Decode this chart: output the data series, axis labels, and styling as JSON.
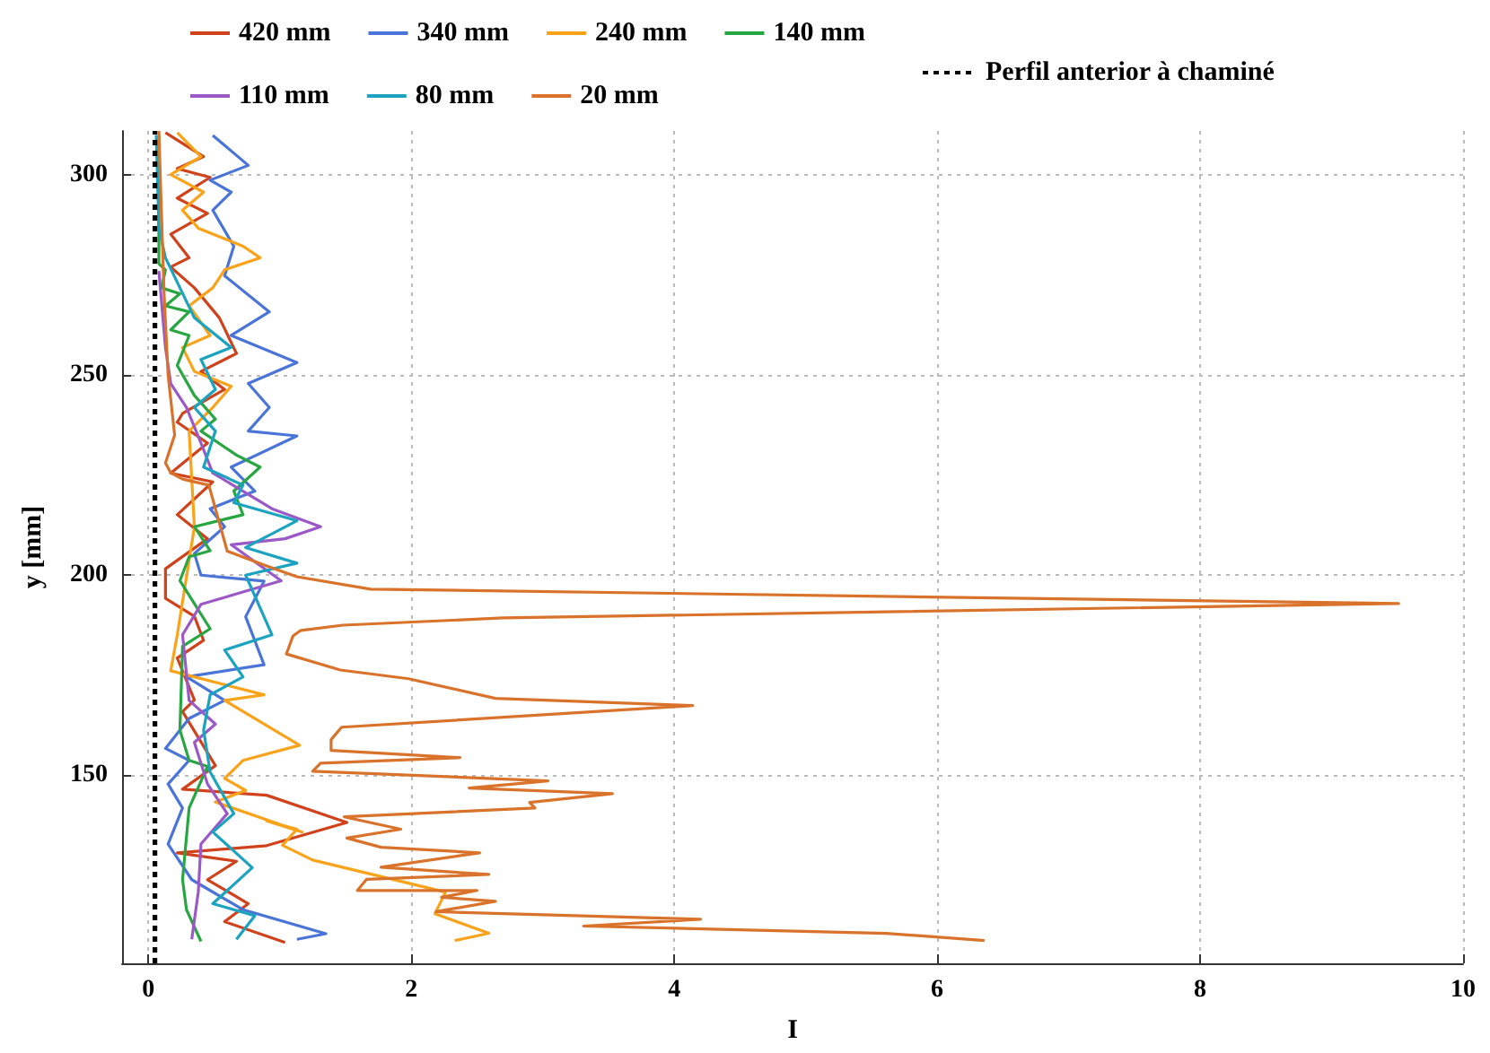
{
  "chart_data": {
    "type": "line",
    "xlabel": "I",
    "ylabel": "y [mm]",
    "xlim": [
      -0.2,
      10
    ],
    "xticks": [
      0,
      2,
      4,
      6,
      8,
      10
    ],
    "ylim": [
      103,
      311
    ],
    "yticks": [
      150,
      200,
      250,
      300
    ],
    "grid": true,
    "legend": "top",
    "marker": "none",
    "line_style": "solid",
    "series": [
      {
        "name": "420 mm",
        "color": "#d0421c",
        "x": [
          0.13,
          0.42,
          0.22,
          0.47,
          0.22,
          0.45,
          0.17,
          0.31,
          0.17,
          0.35,
          0.54,
          0.67,
          0.4,
          0.58,
          0.26,
          0.22,
          0.45,
          0.17,
          0.49,
          0.22,
          0.45,
          0.13,
          0.13,
          0.35,
          0.42,
          0.22,
          0.35,
          0.26,
          0.51,
          0.26,
          0.9,
          1.51,
          0.9,
          0.22,
          0.67,
          0.45,
          0.76,
          0.58,
          1.04
        ],
        "values": [
          310.6,
          304.6,
          301.6,
          299.4,
          294.2,
          290.4,
          285.2,
          279.3,
          277,
          271.8,
          264.3,
          255.4,
          250.9,
          246.4,
          240.4,
          238.2,
          233,
          225.5,
          223.3,
          215.1,
          209.1,
          201.6,
          194.2,
          189.7,
          183.7,
          179.3,
          168.8,
          165.9,
          152.4,
          146.5,
          145,
          138.2,
          132.4,
          130.6,
          128.5,
          123.9,
          117.9,
          113.4,
          108.2
        ]
      },
      {
        "name": "340 mm",
        "color": "#4a74d8",
        "x": [
          0.49,
          0.76,
          0.47,
          0.63,
          0.49,
          0.65,
          0.58,
          0.92,
          0.63,
          1.13,
          0.76,
          0.92,
          0.76,
          1.13,
          0.63,
          0.81,
          0.47,
          0.58,
          0.35,
          0.4,
          0.88,
          0.74,
          0.88,
          0.29,
          0.58,
          0.31,
          0.13,
          0.31,
          0.15,
          0.26,
          0.15,
          0.33,
          0.72,
          1.35,
          1.13
        ],
        "values": [
          309.9,
          302.4,
          298.7,
          295.7,
          291.2,
          282.2,
          274.8,
          265.8,
          259.9,
          253.1,
          247.9,
          241.9,
          236,
          234.8,
          227,
          221,
          216.6,
          212.1,
          205.4,
          200,
          198.5,
          189.6,
          177.6,
          174.6,
          168.7,
          164.2,
          156.7,
          153.7,
          147.8,
          141.8,
          132.8,
          123.9,
          116.4,
          110.4,
          109
        ]
      },
      {
        "name": "240 mm",
        "color": "#f9a31a",
        "x": [
          0.22,
          0.4,
          0.17,
          0.42,
          0.26,
          0.38,
          0.72,
          0.85,
          0.58,
          0.49,
          0.31,
          0.47,
          0.26,
          0.35,
          0.63,
          0.49,
          0.31,
          0.35,
          0.22,
          0.17,
          0.88,
          0.58,
          1.15,
          0.72,
          0.58,
          0.74,
          0.51,
          1.17,
          0.9,
          1.13,
          1.02,
          1.25,
          2.26,
          2.18,
          2.59,
          2.33
        ],
        "values": [
          310.6,
          304.6,
          300.1,
          295.7,
          291.2,
          286.7,
          282.2,
          279.3,
          276.3,
          271.8,
          267.3,
          259.9,
          256.9,
          250.9,
          247.2,
          241.9,
          236,
          212,
          185.1,
          176.1,
          170.1,
          168.7,
          157.5,
          153.7,
          149.2,
          146.2,
          143.3,
          135.8,
          138.6,
          136.5,
          132.5,
          128.8,
          120.8,
          115.4,
          110.5,
          108.7
        ]
      },
      {
        "name": "140 mm",
        "color": "#28a642",
        "x": [
          0.08,
          0.08,
          0.13,
          0.1,
          0.24,
          0.13,
          0.31,
          0.17,
          0.31,
          0.22,
          0.35,
          0.51,
          0.4,
          0.67,
          0.85,
          0.65,
          0.72,
          0.35,
          0.47,
          0.31,
          0.24,
          0.47,
          0.26,
          0.24,
          0.31,
          0.45,
          0.31,
          0.26,
          0.29,
          0.4
        ],
        "values": [
          310,
          277.8,
          276.3,
          271.8,
          270.3,
          267.3,
          265.8,
          261.3,
          259.9,
          252.4,
          244.9,
          239,
          236,
          230,
          227,
          221,
          215.1,
          212.1,
          206.1,
          204.6,
          198.6,
          186.6,
          182.2,
          161.3,
          153.7,
          152.2,
          141.8,
          123.9,
          116.4,
          108.5
        ]
      },
      {
        "name": "110 mm",
        "color": "#9b59c7",
        "x": [
          0.08,
          0.13,
          0.17,
          0.29,
          0.4,
          0.49,
          0.72,
          0.94,
          1.31,
          1.04,
          0.63,
          1.01,
          0.4,
          0.26,
          0.31,
          0.51,
          0.35,
          0.45,
          0.6,
          0.4,
          0.38,
          0.33
        ],
        "values": [
          276,
          256.9,
          247.9,
          241.9,
          233,
          225.5,
          221,
          216.6,
          212.1,
          209.1,
          207.6,
          198.6,
          192.7,
          185.1,
          168.7,
          162.8,
          158.2,
          147.8,
          140.4,
          132.8,
          120.9,
          109
        ]
      },
      {
        "name": "80 mm",
        "color": "#1ba3bf",
        "x": [
          0.06,
          0.08,
          0.13,
          0.35,
          0.63,
          0.4,
          0.51,
          0.35,
          0.51,
          0.42,
          0.72,
          0.65,
          1.13,
          0.74,
          1.13,
          0.74,
          0.94,
          0.58,
          0.72,
          0.47,
          0.42,
          0.47,
          0.65,
          0.49,
          0.79,
          0.49,
          0.81,
          0.67
        ],
        "values": [
          310,
          286.7,
          279.3,
          264.3,
          256.9,
          253.9,
          246.4,
          241.9,
          236,
          227,
          222.5,
          218.1,
          213.6,
          206.9,
          203,
          200,
          185.1,
          181.3,
          174.6,
          170.1,
          161.3,
          150.8,
          140.4,
          135.8,
          126.9,
          117.9,
          114.9,
          109
        ]
      },
      {
        "name": "20 mm",
        "color": "#d9732c",
        "x": [
          0.08,
          0.1,
          0.12,
          0.15,
          0.2,
          0.13,
          0.17,
          0.26,
          0.46,
          0.6,
          0.9,
          1.13,
          1.69,
          9.51,
          2.7,
          1.48,
          1.16,
          1.1,
          1.05,
          1.46,
          1.98,
          2.64,
          4.14,
          1.47,
          1.39,
          1.39,
          2.37,
          1.31,
          1.25,
          3.04,
          2.44,
          3.53,
          2.9,
          2.94,
          1.49,
          1.92,
          1.51,
          1.77,
          2.52,
          1.77,
          2.59,
          1.66,
          1.59,
          2.5,
          2.23,
          2.64,
          2.19,
          4.2,
          3.31,
          5.61,
          6.36
        ],
        "values": [
          311,
          290,
          270,
          250,
          235,
          228,
          225.6,
          224,
          222.5,
          206,
          202.3,
          199.6,
          196.5,
          192.9,
          189.3,
          187.5,
          186.2,
          184.8,
          180.3,
          176.3,
          174.1,
          169.2,
          167.4,
          162,
          158.9,
          156.2,
          154.4,
          153,
          151,
          148.6,
          146.8,
          145.4,
          143.2,
          141.8,
          139.6,
          136.5,
          134.3,
          132,
          130.6,
          127,
          125.2,
          124,
          121.2,
          121.2,
          119.5,
          118.5,
          115.9,
          114,
          112.3,
          110.5,
          108.7
        ]
      },
      {
        "name": "Perfil anterior à chaminé",
        "color": "#000000",
        "line_style": "dashed",
        "x": [
          0.05,
          0.05
        ],
        "values": [
          103,
          311
        ]
      }
    ]
  }
}
